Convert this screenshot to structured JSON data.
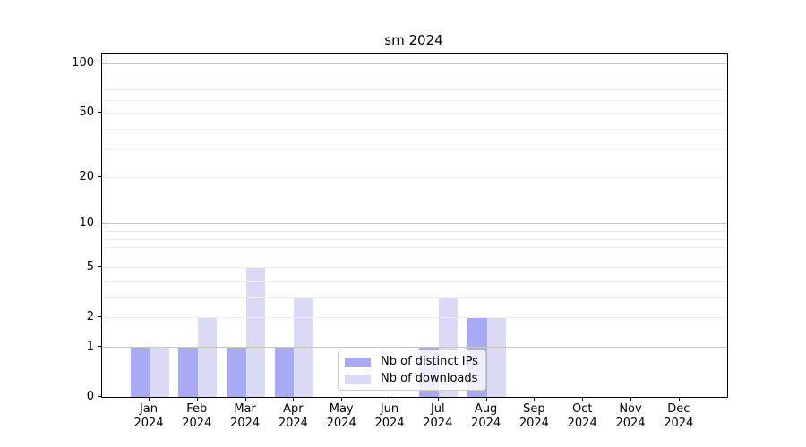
{
  "title": "sm 2024",
  "legend": {
    "items": [
      {
        "label": "Nb of distinct IPs",
        "color": "#a9a9f4"
      },
      {
        "label": "Nb of downloads",
        "color": "#dadaf7"
      }
    ]
  },
  "chart_data": {
    "type": "bar",
    "title": "sm 2024",
    "xlabel": "",
    "ylabel": "",
    "categories": [
      "Jan 2024",
      "Feb 2024",
      "Mar 2024",
      "Apr 2024",
      "May 2024",
      "Jun 2024",
      "Jul 2024",
      "Aug 2024",
      "Sep 2024",
      "Oct 2024",
      "Nov 2024",
      "Dec 2024"
    ],
    "series": [
      {
        "name": "Nb of distinct IPs",
        "color": "#a9a9f4",
        "values": [
          1,
          1,
          1,
          1,
          0,
          0,
          1,
          2,
          0,
          0,
          0,
          0
        ]
      },
      {
        "name": "Nb of downloads",
        "color": "#dadaf7",
        "values": [
          1,
          2,
          5,
          3,
          0,
          0,
          3,
          2,
          0,
          0,
          0,
          0
        ]
      }
    ],
    "yscale": "log1p",
    "ylim": [
      0,
      115
    ],
    "yticks": [
      0,
      1,
      2,
      5,
      10,
      20,
      50,
      100
    ],
    "major_gridlines": [
      1,
      10,
      100
    ],
    "minor_gridlines": [
      2,
      3,
      4,
      5,
      6,
      7,
      8,
      9,
      20,
      30,
      40,
      50,
      60,
      70,
      80,
      90
    ],
    "grid": true,
    "legend_position": "lower center (inside plot)",
    "colors": {
      "major_grid": "#c6c6c6",
      "minor_grid": "#efefef",
      "axis": "#000000",
      "background": "#ffffff"
    }
  }
}
